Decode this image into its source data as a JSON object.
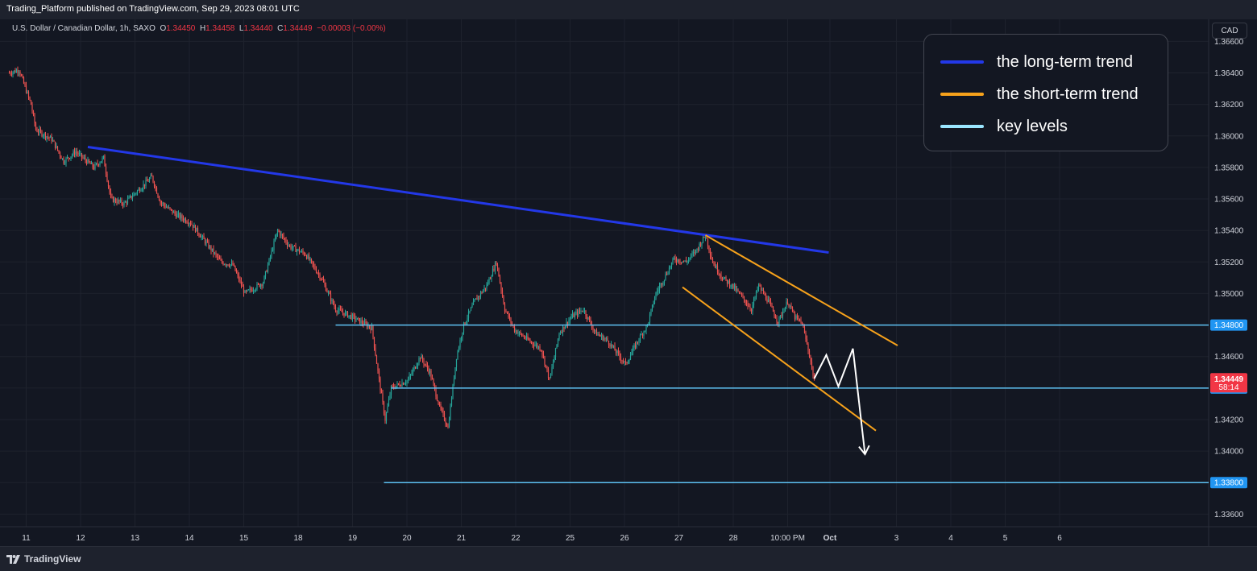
{
  "header": {
    "publish_line": "Trading_Platform published on TradingView.com, Sep 29, 2023 08:01 UTC"
  },
  "symbol": {
    "name": "U.S. Dollar / Canadian Dollar, 1h, SAXO",
    "open_label": "O",
    "open": "1.34450",
    "high_label": "H",
    "high": "1.34458",
    "low_label": "L",
    "low": "1.34440",
    "close_label": "C",
    "close": "1.34449",
    "change": "−0.00003 (−0.00%)"
  },
  "currency": "CAD",
  "legend": {
    "items": [
      {
        "label": "the long-term trend",
        "color": "#2338e8"
      },
      {
        "label": "the short-term trend",
        "color": "#f7a21b"
      },
      {
        "label": "key levels",
        "color": "#9ae6ff"
      }
    ]
  },
  "footer": {
    "brand": "TradingView"
  },
  "colors": {
    "background": "#131722",
    "grid": "#1e222d",
    "up": "#26a69a",
    "down": "#ef5350",
    "long_trend": "#2338e8",
    "short_trend": "#f7a21b",
    "key_level": "#5ec1f2",
    "projection": "#ffffff"
  },
  "chart_data": {
    "type": "candlestick",
    "ylim": [
      1.3352,
      1.3674
    ],
    "y_ticks": [
      "1.36600",
      "1.36400",
      "1.36200",
      "1.36000",
      "1.35800",
      "1.35600",
      "1.35400",
      "1.35200",
      "1.35000",
      "1.34800",
      "1.34600",
      "1.34400",
      "1.34200",
      "1.34000",
      "1.33800",
      "1.33600"
    ],
    "x_ticks": [
      "11",
      "12",
      "13",
      "14",
      "15",
      "18",
      "19",
      "20",
      "21",
      "22",
      "25",
      "26",
      "27",
      "28",
      "10:00 PM",
      "Oct",
      "3",
      "4",
      "5",
      "6"
    ],
    "x_tick_slots": [
      14,
      59,
      104,
      149,
      194,
      239,
      284,
      329,
      374,
      419,
      464,
      509,
      554,
      599,
      644,
      679,
      734,
      779,
      824,
      869
    ],
    "slot_count": 875,
    "price_path": [
      [
        0,
        1.364
      ],
      [
        8,
        1.3642
      ],
      [
        18,
        1.362
      ],
      [
        22,
        1.3604
      ],
      [
        35,
        1.3598
      ],
      [
        45,
        1.3584
      ],
      [
        55,
        1.359
      ],
      [
        70,
        1.358
      ],
      [
        78,
        1.3586
      ],
      [
        84,
        1.356
      ],
      [
        95,
        1.3557
      ],
      [
        110,
        1.3568
      ],
      [
        118,
        1.3574
      ],
      [
        125,
        1.3558
      ],
      [
        138,
        1.355
      ],
      [
        150,
        1.3545
      ],
      [
        165,
        1.353
      ],
      [
        175,
        1.352
      ],
      [
        185,
        1.3518
      ],
      [
        195,
        1.35
      ],
      [
        210,
        1.3507
      ],
      [
        222,
        1.354
      ],
      [
        232,
        1.353
      ],
      [
        245,
        1.3525
      ],
      [
        258,
        1.351
      ],
      [
        270,
        1.349
      ],
      [
        284,
        1.3485
      ],
      [
        300,
        1.3478
      ],
      [
        306,
        1.3445
      ],
      [
        311,
        1.342
      ],
      [
        316,
        1.344
      ],
      [
        330,
        1.3445
      ],
      [
        340,
        1.346
      ],
      [
        348,
        1.345
      ],
      [
        356,
        1.3428
      ],
      [
        363,
        1.3415
      ],
      [
        370,
        1.346
      ],
      [
        376,
        1.348
      ],
      [
        385,
        1.3495
      ],
      [
        395,
        1.3505
      ],
      [
        403,
        1.352
      ],
      [
        410,
        1.349
      ],
      [
        418,
        1.3477
      ],
      [
        430,
        1.347
      ],
      [
        440,
        1.3465
      ],
      [
        447,
        1.3445
      ],
      [
        455,
        1.3475
      ],
      [
        465,
        1.3485
      ],
      [
        475,
        1.349
      ],
      [
        485,
        1.3475
      ],
      [
        495,
        1.347
      ],
      [
        510,
        1.3455
      ],
      [
        520,
        1.347
      ],
      [
        528,
        1.348
      ],
      [
        535,
        1.35
      ],
      [
        542,
        1.351
      ],
      [
        550,
        1.3522
      ],
      [
        560,
        1.352
      ],
      [
        568,
        1.3527
      ],
      [
        576,
        1.3537
      ],
      [
        582,
        1.352
      ],
      [
        590,
        1.351
      ],
      [
        598,
        1.3505
      ],
      [
        606,
        1.3498
      ],
      [
        614,
        1.349
      ],
      [
        620,
        1.3505
      ],
      [
        628,
        1.3495
      ],
      [
        636,
        1.3482
      ],
      [
        644,
        1.3495
      ],
      [
        650,
        1.3485
      ],
      [
        656,
        1.3481
      ],
      [
        662,
        1.3461
      ],
      [
        666,
        1.34449
      ]
    ],
    "candles_approximate": true,
    "long_term_trend": {
      "from": [
        65,
        1.3593
      ],
      "to": [
        678,
        1.3526
      ]
    },
    "short_term_trend_upper": {
      "from": [
        576,
        1.3537
      ],
      "to": [
        735,
        1.3467
      ]
    },
    "short_term_trend_lower": {
      "from": [
        557,
        1.3504
      ],
      "to": [
        717,
        1.3413
      ]
    },
    "key_levels": [
      {
        "value": 1.348,
        "label": "1.34800",
        "from": 270
      },
      {
        "value": 1.344,
        "label": "1.34400",
        "from": 316
      },
      {
        "value": 1.338,
        "label": "1.33800",
        "from": 310
      }
    ],
    "current_price": {
      "value": 1.34449,
      "label": "1.34449",
      "countdown": "58:14"
    },
    "projection_path": [
      [
        666,
        1.3446
      ],
      [
        676,
        1.3461
      ],
      [
        686,
        1.3441
      ],
      [
        698,
        1.3465
      ],
      [
        708,
        1.3398
      ]
    ]
  }
}
